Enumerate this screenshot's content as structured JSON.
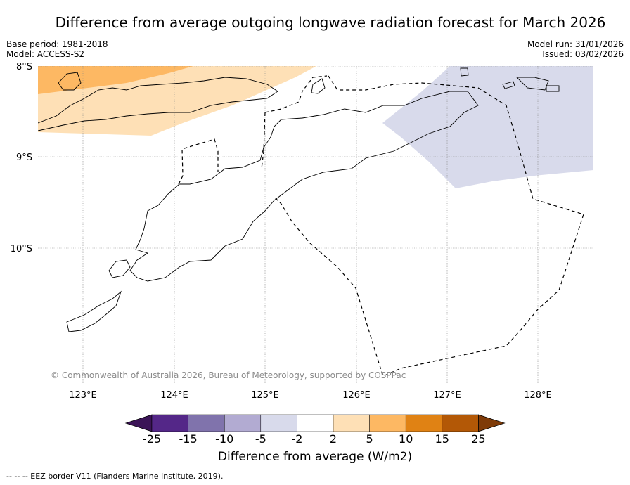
{
  "title": "Difference from average outgoing longwave radiation forecast for March 2026",
  "meta_left": {
    "base_period": "Base period: 1981-2018",
    "model": "Model: ACCESS-S2"
  },
  "meta_right": {
    "model_run": "Model run: 31/01/2026",
    "issued": "Issued: 03/02/2026"
  },
  "map": {
    "lat_labels": [
      "8°S",
      "9°S",
      "10°S"
    ],
    "lon_labels": [
      "123°E",
      "124°E",
      "125°E",
      "126°E",
      "127°E",
      "128°E"
    ],
    "copyright": "© Commonwealth of Australia 2026, Bureau of Meteorology, supported by COSPPac",
    "extent": {
      "lon_min": 122.5,
      "lon_max": 128.6,
      "lat_min": -11.4,
      "lat_max": -8.0
    }
  },
  "colorbar": {
    "title": "Difference from average (W/m2)",
    "ticks": [
      "-25",
      "-15",
      "-10",
      "-5",
      "-2",
      "2",
      "5",
      "10",
      "15",
      "25"
    ],
    "colors": [
      "#3b1457",
      "#542788",
      "#8073ac",
      "#b2abd2",
      "#d8daeb",
      "#ffffff",
      "#fee0b6",
      "#fdb863",
      "#e08214",
      "#b35806",
      "#7f3b08"
    ]
  },
  "footer": "--  --  -- EEZ border V11 (Flanders Marine Institute, 2019)."
}
